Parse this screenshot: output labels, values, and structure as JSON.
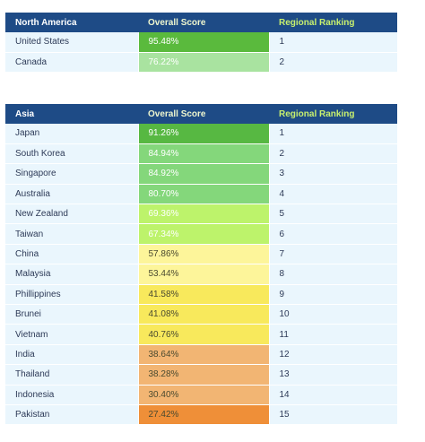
{
  "north_america": {
    "headers": {
      "region": "North America",
      "score": "Overall Score",
      "rank": "Regional Ranking"
    },
    "rows": [
      {
        "country": "United States",
        "score": "95.48%",
        "rank": "1",
        "color": "#5aba3d",
        "text_dark": false
      },
      {
        "country": "Canada",
        "score": "76.22%",
        "rank": "2",
        "color": "#a9e3a0",
        "text_dark": false
      }
    ]
  },
  "asia": {
    "headers": {
      "region": "Asia",
      "score": "Overall Score",
      "rank": "Regional Ranking"
    },
    "rows": [
      {
        "country": "Japan",
        "score": "91.26%",
        "rank": "1",
        "color": "#57b842",
        "text_dark": false
      },
      {
        "country": "South Korea",
        "score": "84.94%",
        "rank": "2",
        "color": "#84d77b",
        "text_dark": false
      },
      {
        "country": "Singapore",
        "score": "84.92%",
        "rank": "3",
        "color": "#84d77b",
        "text_dark": false
      },
      {
        "country": "Australia",
        "score": "80.70%",
        "rank": "4",
        "color": "#84d77b",
        "text_dark": false
      },
      {
        "country": "New Zealand",
        "score": "69.36%",
        "rank": "5",
        "color": "#bdf36b",
        "text_dark": false
      },
      {
        "country": "Taiwan",
        "score": "67.34%",
        "rank": "6",
        "color": "#bdf36b",
        "text_dark": false
      },
      {
        "country": "China",
        "score": "57.86%",
        "rank": "7",
        "color": "#fdf59a",
        "text_dark": true
      },
      {
        "country": "Malaysia",
        "score": "53.44%",
        "rank": "8",
        "color": "#fdf59a",
        "text_dark": true
      },
      {
        "country": "Phillippines",
        "score": "41.58%",
        "rank": "9",
        "color": "#f8e95c",
        "text_dark": true
      },
      {
        "country": "Brunei",
        "score": "41.08%",
        "rank": "10",
        "color": "#f8e95c",
        "text_dark": true
      },
      {
        "country": "Vietnam",
        "score": "40.76%",
        "rank": "11",
        "color": "#f8e95c",
        "text_dark": true
      },
      {
        "country": "India",
        "score": "38.64%",
        "rank": "12",
        "color": "#f2b573",
        "text_dark": true
      },
      {
        "country": "Thailand",
        "score": "38.28%",
        "rank": "13",
        "color": "#f2b573",
        "text_dark": true
      },
      {
        "country": "Indonesia",
        "score": "30.40%",
        "rank": "14",
        "color": "#f2b573",
        "text_dark": true
      },
      {
        "country": "Pakistan",
        "score": "27.42%",
        "rank": "15",
        "color": "#ef8f38",
        "text_dark": true
      }
    ]
  }
}
